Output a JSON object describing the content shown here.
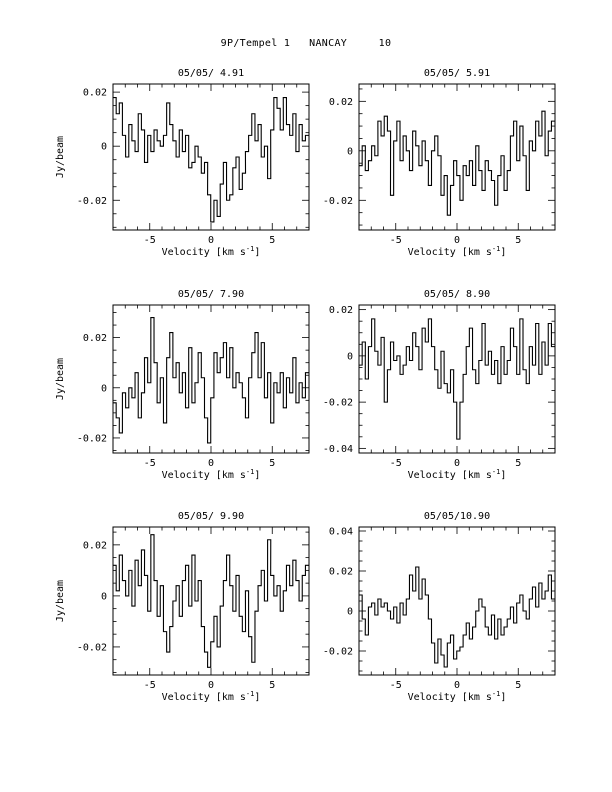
{
  "page": {
    "title": "9P/Tempel 1   NANCAY     10"
  },
  "chart_data": [
    {
      "type": "line",
      "title": "05/05/ 4.91",
      "xlabel": "Velocity [km s",
      "xlabel_unit_exp": "-1",
      "xlabel_tail": "]",
      "ylabel": "Jy/beam",
      "xlim": [
        -8,
        8
      ],
      "ylim": [
        -0.031,
        0.023
      ],
      "xticks": [
        -5,
        0,
        5
      ],
      "xtick_labels": [
        "-5",
        "0",
        "5"
      ],
      "yticks": [
        -0.02,
        0,
        0.02
      ],
      "ytick_labels": [
        "-0.02",
        "0",
        "0.02"
      ],
      "series": [
        {
          "x": [
            -8.0,
            -7.74,
            -7.49,
            -7.23,
            -6.97,
            -6.71,
            -6.46,
            -6.2,
            -5.94,
            -5.68,
            -5.43,
            -5.17,
            -4.91,
            -4.65,
            -4.4,
            -4.14,
            -3.88,
            -3.62,
            -3.37,
            -3.11,
            -2.85,
            -2.59,
            -2.34,
            -2.08,
            -1.82,
            -1.56,
            -1.31,
            -1.05,
            -0.79,
            -0.53,
            -0.28,
            -0.02,
            0.24,
            0.5,
            0.75,
            1.01,
            1.27,
            1.53,
            1.78,
            2.04,
            2.3,
            2.56,
            2.81,
            3.07,
            3.33,
            3.59,
            3.84,
            4.1,
            4.36,
            4.62,
            4.87,
            5.13,
            5.39,
            5.65,
            5.9,
            6.16,
            6.42,
            6.68,
            6.93,
            7.19,
            7.45,
            7.71
          ],
          "y": [
            0.018,
            0.012,
            0.016,
            0.004,
            -0.004,
            0.008,
            0.002,
            -0.002,
            0.012,
            0.006,
            -0.006,
            0.004,
            -0.002,
            0.006,
            0.002,
            0.0,
            0.004,
            0.016,
            0.008,
            0.002,
            -0.004,
            0.006,
            -0.002,
            0.004,
            -0.008,
            -0.006,
            0.0,
            -0.004,
            -0.01,
            -0.006,
            -0.018,
            -0.028,
            -0.02,
            -0.026,
            -0.014,
            -0.006,
            -0.02,
            -0.018,
            -0.008,
            -0.004,
            -0.016,
            -0.01,
            -0.002,
            0.004,
            0.012,
            0.002,
            0.008,
            -0.004,
            0.0,
            -0.012,
            0.006,
            0.018,
            0.014,
            0.006,
            0.018,
            0.008,
            0.004,
            0.012,
            -0.002,
            0.008,
            0.002,
            0.004
          ]
        }
      ]
    },
    {
      "type": "line",
      "title": "05/05/ 5.91",
      "xlabel": "Velocity [km s",
      "xlabel_unit_exp": "-1",
      "xlabel_tail": "]",
      "ylabel": "",
      "xlim": [
        -8,
        8
      ],
      "ylim": [
        -0.032,
        0.027
      ],
      "xticks": [
        -5,
        0,
        5
      ],
      "xtick_labels": [
        "-5",
        "0",
        "5"
      ],
      "yticks": [
        -0.02,
        0,
        0.02
      ],
      "ytick_labels": [
        "-0.02",
        "0",
        "0.02"
      ],
      "series": [
        {
          "x": [
            -8.0,
            -7.74,
            -7.49,
            -7.23,
            -6.97,
            -6.71,
            -6.46,
            -6.2,
            -5.94,
            -5.68,
            -5.43,
            -5.17,
            -4.91,
            -4.65,
            -4.4,
            -4.14,
            -3.88,
            -3.62,
            -3.37,
            -3.11,
            -2.85,
            -2.59,
            -2.34,
            -2.08,
            -1.82,
            -1.56,
            -1.31,
            -1.05,
            -0.79,
            -0.53,
            -0.28,
            -0.02,
            0.24,
            0.5,
            0.75,
            1.01,
            1.27,
            1.53,
            1.78,
            2.04,
            2.3,
            2.56,
            2.81,
            3.07,
            3.33,
            3.59,
            3.84,
            4.1,
            4.36,
            4.62,
            4.87,
            5.13,
            5.39,
            5.65,
            5.9,
            6.16,
            6.42,
            6.68,
            6.93,
            7.19,
            7.45,
            7.71
          ],
          "y": [
            -0.006,
            0.002,
            -0.008,
            -0.004,
            0.002,
            -0.002,
            0.012,
            0.006,
            0.014,
            0.008,
            -0.018,
            0.004,
            0.012,
            -0.004,
            0.006,
            0.0,
            -0.008,
            0.008,
            0.002,
            -0.006,
            0.004,
            -0.004,
            -0.014,
            0.0,
            0.006,
            -0.002,
            -0.018,
            -0.01,
            -0.026,
            -0.014,
            -0.004,
            -0.01,
            -0.02,
            -0.006,
            -0.01,
            -0.004,
            -0.014,
            0.002,
            -0.008,
            -0.016,
            -0.004,
            -0.008,
            -0.012,
            -0.022,
            -0.01,
            -0.002,
            -0.016,
            -0.008,
            0.006,
            0.012,
            -0.004,
            0.01,
            -0.002,
            -0.016,
            0.004,
            0.0,
            0.012,
            0.006,
            0.016,
            -0.002,
            0.008,
            0.012
          ]
        }
      ]
    },
    {
      "type": "line",
      "title": "05/05/ 7.90",
      "xlabel": "Velocity [km s",
      "xlabel_unit_exp": "-1",
      "xlabel_tail": "]",
      "ylabel": "Jy/beam",
      "xlim": [
        -8,
        8
      ],
      "ylim": [
        -0.026,
        0.033
      ],
      "xticks": [
        -5,
        0,
        5
      ],
      "xtick_labels": [
        "-5",
        "0",
        "5"
      ],
      "yticks": [
        -0.02,
        0,
        0.02
      ],
      "ytick_labels": [
        "-0.02",
        "0",
        "0.02"
      ],
      "series": [
        {
          "x": [
            -8.0,
            -7.74,
            -7.49,
            -7.23,
            -6.97,
            -6.71,
            -6.46,
            -6.2,
            -5.94,
            -5.68,
            -5.43,
            -5.17,
            -4.91,
            -4.65,
            -4.4,
            -4.14,
            -3.88,
            -3.62,
            -3.37,
            -3.11,
            -2.85,
            -2.59,
            -2.34,
            -2.08,
            -1.82,
            -1.56,
            -1.31,
            -1.05,
            -0.79,
            -0.53,
            -0.28,
            -0.02,
            0.24,
            0.5,
            0.75,
            1.01,
            1.27,
            1.53,
            1.78,
            2.04,
            2.3,
            2.56,
            2.81,
            3.07,
            3.33,
            3.59,
            3.84,
            4.1,
            4.36,
            4.62,
            4.87,
            5.13,
            5.39,
            5.65,
            5.9,
            6.16,
            6.42,
            6.68,
            6.93,
            7.19,
            7.45,
            7.71
          ],
          "y": [
            -0.006,
            -0.012,
            -0.018,
            -0.002,
            -0.008,
            0.0,
            -0.004,
            0.006,
            -0.012,
            -0.002,
            0.012,
            0.002,
            0.028,
            0.01,
            -0.006,
            0.004,
            -0.014,
            0.012,
            0.022,
            0.004,
            0.01,
            -0.002,
            0.006,
            -0.008,
            0.016,
            -0.006,
            0.002,
            0.014,
            0.004,
            -0.012,
            -0.022,
            -0.004,
            0.014,
            0.006,
            0.012,
            0.018,
            0.004,
            0.016,
            0.0,
            0.006,
            0.002,
            -0.004,
            -0.012,
            0.004,
            0.014,
            0.022,
            0.004,
            0.018,
            -0.004,
            0.006,
            -0.014,
            0.002,
            -0.002,
            0.006,
            -0.008,
            0.004,
            -0.002,
            0.012,
            -0.006,
            0.002,
            -0.004,
            0.006
          ]
        }
      ]
    },
    {
      "type": "line",
      "title": "05/05/ 8.90",
      "xlabel": "Velocity [km s",
      "xlabel_unit_exp": "-1",
      "xlabel_tail": "]",
      "ylabel": "",
      "xlim": [
        -8,
        8
      ],
      "ylim": [
        -0.042,
        0.022
      ],
      "xticks": [
        -5,
        0,
        5
      ],
      "xtick_labels": [
        "-5",
        "0",
        "5"
      ],
      "yticks": [
        -0.04,
        -0.02,
        0,
        0.02
      ],
      "ytick_labels": [
        "-0.04",
        "-0.02",
        "0",
        "0.02"
      ],
      "series": [
        {
          "x": [
            -8.0,
            -7.74,
            -7.49,
            -7.23,
            -6.97,
            -6.71,
            -6.46,
            -6.2,
            -5.94,
            -5.68,
            -5.43,
            -5.17,
            -4.91,
            -4.65,
            -4.4,
            -4.14,
            -3.88,
            -3.62,
            -3.37,
            -3.11,
            -2.85,
            -2.59,
            -2.34,
            -2.08,
            -1.82,
            -1.56,
            -1.31,
            -1.05,
            -0.79,
            -0.53,
            -0.28,
            -0.02,
            0.24,
            0.5,
            0.75,
            1.01,
            1.27,
            1.53,
            1.78,
            2.04,
            2.3,
            2.56,
            2.81,
            3.07,
            3.33,
            3.59,
            3.84,
            4.1,
            4.36,
            4.62,
            4.87,
            5.13,
            5.39,
            5.65,
            5.9,
            6.16,
            6.42,
            6.68,
            6.93,
            7.19,
            7.45,
            7.71
          ],
          "y": [
            -0.004,
            0.006,
            -0.01,
            0.004,
            0.016,
            0.002,
            -0.004,
            0.008,
            -0.02,
            -0.006,
            0.006,
            -0.002,
            0.0,
            -0.008,
            -0.004,
            0.004,
            -0.002,
            0.01,
            0.004,
            -0.006,
            0.012,
            0.006,
            0.016,
            0.004,
            -0.006,
            -0.014,
            0.002,
            -0.012,
            -0.016,
            -0.006,
            -0.02,
            -0.036,
            -0.02,
            -0.008,
            0.004,
            0.012,
            -0.006,
            -0.012,
            -0.002,
            0.014,
            -0.004,
            0.002,
            -0.008,
            -0.002,
            -0.012,
            0.004,
            -0.008,
            -0.002,
            0.012,
            0.004,
            -0.008,
            0.016,
            -0.006,
            -0.012,
            0.004,
            -0.004,
            0.014,
            -0.008,
            0.006,
            -0.004,
            0.014,
            0.004
          ]
        }
      ]
    },
    {
      "type": "line",
      "title": "05/05/ 9.90",
      "xlabel": "Velocity [km s",
      "xlabel_unit_exp": "-1",
      "xlabel_tail": "]",
      "ylabel": "Jy/beam",
      "xlim": [
        -8,
        8
      ],
      "ylim": [
        -0.031,
        0.027
      ],
      "xticks": [
        -5,
        0,
        5
      ],
      "xtick_labels": [
        "-5",
        "0",
        "5"
      ],
      "yticks": [
        -0.02,
        0,
        0.02
      ],
      "ytick_labels": [
        "-0.02",
        "0",
        "0.02"
      ],
      "series": [
        {
          "x": [
            -8.0,
            -7.74,
            -7.49,
            -7.23,
            -6.97,
            -6.71,
            -6.46,
            -6.2,
            -5.94,
            -5.68,
            -5.43,
            -5.17,
            -4.91,
            -4.65,
            -4.4,
            -4.14,
            -3.88,
            -3.62,
            -3.37,
            -3.11,
            -2.85,
            -2.59,
            -2.34,
            -2.08,
            -1.82,
            -1.56,
            -1.31,
            -1.05,
            -0.79,
            -0.53,
            -0.28,
            -0.02,
            0.24,
            0.5,
            0.75,
            1.01,
            1.27,
            1.53,
            1.78,
            2.04,
            2.3,
            2.56,
            2.81,
            3.07,
            3.33,
            3.59,
            3.84,
            4.1,
            4.36,
            4.62,
            4.87,
            5.13,
            5.39,
            5.65,
            5.9,
            6.16,
            6.42,
            6.68,
            6.93,
            7.19,
            7.45,
            7.71
          ],
          "y": [
            0.012,
            0.002,
            0.016,
            0.006,
            0.0,
            0.01,
            -0.004,
            0.014,
            0.004,
            0.018,
            0.008,
            -0.006,
            0.024,
            0.006,
            -0.008,
            0.004,
            -0.014,
            -0.022,
            -0.012,
            -0.002,
            0.004,
            -0.008,
            0.006,
            0.012,
            -0.004,
            0.016,
            -0.002,
            0.006,
            -0.012,
            -0.022,
            -0.028,
            -0.018,
            -0.008,
            -0.02,
            -0.004,
            0.006,
            0.016,
            0.004,
            -0.006,
            0.008,
            -0.008,
            -0.014,
            0.002,
            -0.016,
            -0.026,
            -0.006,
            0.004,
            0.01,
            -0.002,
            0.022,
            0.008,
            0.0,
            0.004,
            -0.006,
            0.002,
            0.012,
            0.004,
            0.014,
            0.006,
            -0.002,
            0.008,
            0.012
          ]
        }
      ]
    },
    {
      "type": "line",
      "title": "05/05/10.90",
      "xlabel": "Velocity [km s",
      "xlabel_unit_exp": "-1",
      "xlabel_tail": "]",
      "ylabel": "",
      "xlim": [
        -8,
        8
      ],
      "ylim": [
        -0.032,
        0.042
      ],
      "xticks": [
        -5,
        0,
        5
      ],
      "xtick_labels": [
        "-5",
        "0",
        "5"
      ],
      "yticks": [
        -0.02,
        0,
        0.02,
        0.04
      ],
      "ytick_labels": [
        "-0.02",
        "0",
        "0.02",
        "0.04"
      ],
      "series": [
        {
          "x": [
            -8.0,
            -7.74,
            -7.49,
            -7.23,
            -6.97,
            -6.71,
            -6.46,
            -6.2,
            -5.94,
            -5.68,
            -5.43,
            -5.17,
            -4.91,
            -4.65,
            -4.4,
            -4.14,
            -3.88,
            -3.62,
            -3.37,
            -3.11,
            -2.85,
            -2.59,
            -2.34,
            -2.08,
            -1.82,
            -1.56,
            -1.31,
            -1.05,
            -0.79,
            -0.53,
            -0.28,
            -0.02,
            0.24,
            0.5,
            0.75,
            1.01,
            1.27,
            1.53,
            1.78,
            2.04,
            2.3,
            2.56,
            2.81,
            3.07,
            3.33,
            3.59,
            3.84,
            4.1,
            4.36,
            4.62,
            4.87,
            5.13,
            5.39,
            5.65,
            5.9,
            6.16,
            6.42,
            6.68,
            6.93,
            7.19,
            7.45,
            7.71
          ],
          "y": [
            0.008,
            -0.004,
            -0.012,
            0.002,
            0.004,
            -0.002,
            0.006,
            0.002,
            0.004,
            0.0,
            -0.004,
            0.002,
            -0.006,
            0.004,
            -0.002,
            0.006,
            0.018,
            0.01,
            0.022,
            0.006,
            0.016,
            0.008,
            -0.004,
            -0.016,
            -0.026,
            -0.014,
            -0.022,
            -0.028,
            -0.016,
            -0.012,
            -0.024,
            -0.02,
            -0.018,
            -0.012,
            -0.006,
            -0.014,
            -0.008,
            0.0,
            0.006,
            0.002,
            -0.008,
            -0.012,
            -0.002,
            -0.014,
            -0.004,
            -0.012,
            -0.008,
            -0.004,
            0.002,
            -0.006,
            0.004,
            0.008,
            0.0,
            -0.004,
            0.006,
            0.012,
            0.002,
            0.014,
            0.006,
            0.01,
            0.018,
            0.006
          ]
        }
      ]
    }
  ]
}
